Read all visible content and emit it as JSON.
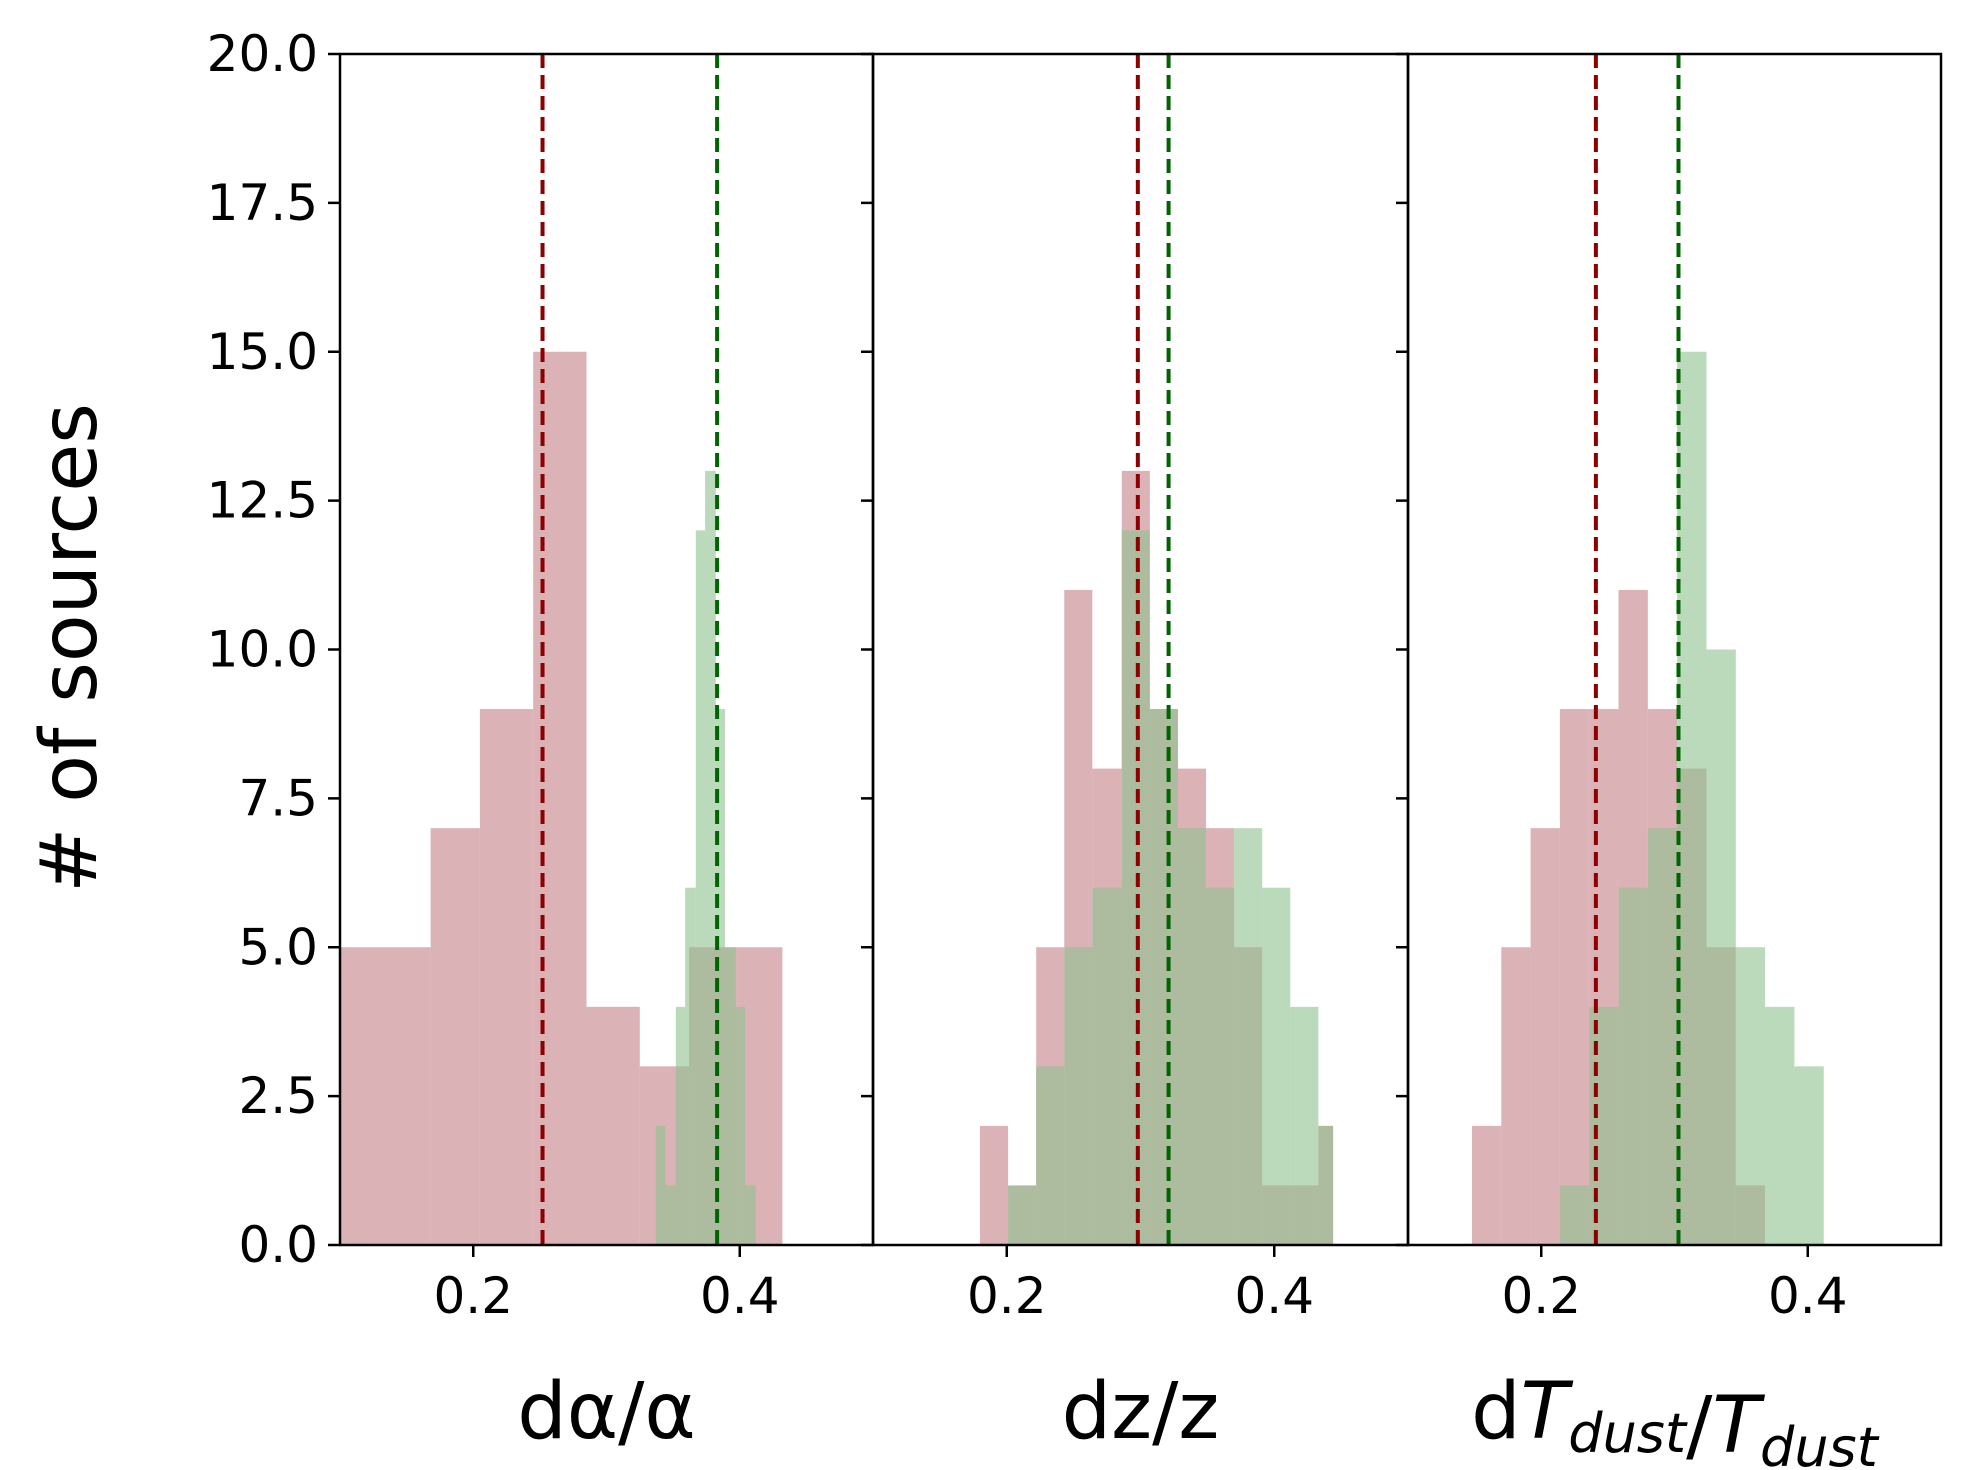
{
  "chart_data": {
    "type": "histogram",
    "ylabel": "# of sources",
    "ylim": [
      0,
      20
    ],
    "yticks": [
      "0.0",
      "2.5",
      "5.0",
      "7.5",
      "10.0",
      "12.5",
      "15.0",
      "17.5",
      "20.0"
    ],
    "xlim": [
      0.1,
      0.5
    ],
    "xticks": [
      "0.2",
      "0.4"
    ],
    "colors": {
      "red_fill": "#c88a8f",
      "green_fill": "#8dc08d",
      "red_line": "#8b0000",
      "green_line": "#006400"
    },
    "panels": [
      {
        "xlabel": "dα/α",
        "xlabel_parts": [
          {
            "text": "dα/α",
            "style": "normal"
          }
        ],
        "red_mean": 0.252,
        "green_mean": 0.383,
        "red_bins": [
          {
            "x0": 0.1,
            "x1": 0.168,
            "count": 5
          },
          {
            "x0": 0.168,
            "x1": 0.205,
            "count": 7
          },
          {
            "x0": 0.205,
            "x1": 0.245,
            "count": 9
          },
          {
            "x0": 0.245,
            "x1": 0.285,
            "count": 15
          },
          {
            "x0": 0.285,
            "x1": 0.325,
            "count": 4
          },
          {
            "x0": 0.325,
            "x1": 0.362,
            "count": 3
          },
          {
            "x0": 0.362,
            "x1": 0.398,
            "count": 5
          },
          {
            "x0": 0.398,
            "x1": 0.432,
            "count": 5
          }
        ],
        "green_bins": [
          {
            "x0": 0.337,
            "x1": 0.344,
            "count": 2
          },
          {
            "x0": 0.344,
            "x1": 0.352,
            "count": 1
          },
          {
            "x0": 0.352,
            "x1": 0.359,
            "count": 4
          },
          {
            "x0": 0.359,
            "x1": 0.367,
            "count": 6
          },
          {
            "x0": 0.367,
            "x1": 0.374,
            "count": 12
          },
          {
            "x0": 0.374,
            "x1": 0.382,
            "count": 13
          },
          {
            "x0": 0.382,
            "x1": 0.389,
            "count": 9
          },
          {
            "x0": 0.389,
            "x1": 0.397,
            "count": 5
          },
          {
            "x0": 0.397,
            "x1": 0.404,
            "count": 4
          },
          {
            "x0": 0.404,
            "x1": 0.412,
            "count": 1
          }
        ]
      },
      {
        "xlabel": "dz/z",
        "xlabel_parts": [
          {
            "text": "dz/z",
            "style": "normal"
          }
        ],
        "red_mean": 0.298,
        "green_mean": 0.321,
        "red_bins": [
          {
            "x0": 0.18,
            "x1": 0.201,
            "count": 2
          },
          {
            "x0": 0.201,
            "x1": 0.222,
            "count": 1
          },
          {
            "x0": 0.222,
            "x1": 0.243,
            "count": 5
          },
          {
            "x0": 0.243,
            "x1": 0.264,
            "count": 11
          },
          {
            "x0": 0.264,
            "x1": 0.286,
            "count": 8
          },
          {
            "x0": 0.286,
            "x1": 0.307,
            "count": 13
          },
          {
            "x0": 0.307,
            "x1": 0.328,
            "count": 9
          },
          {
            "x0": 0.328,
            "x1": 0.349,
            "count": 8
          },
          {
            "x0": 0.349,
            "x1": 0.37,
            "count": 7
          },
          {
            "x0": 0.37,
            "x1": 0.391,
            "count": 5
          },
          {
            "x0": 0.391,
            "x1": 0.412,
            "count": 1
          },
          {
            "x0": 0.412,
            "x1": 0.433,
            "count": 1
          },
          {
            "x0": 0.433,
            "x1": 0.444,
            "count": 2
          }
        ],
        "green_bins": [
          {
            "x0": 0.201,
            "x1": 0.222,
            "count": 1
          },
          {
            "x0": 0.222,
            "x1": 0.243,
            "count": 3
          },
          {
            "x0": 0.243,
            "x1": 0.264,
            "count": 5
          },
          {
            "x0": 0.264,
            "x1": 0.286,
            "count": 6
          },
          {
            "x0": 0.286,
            "x1": 0.307,
            "count": 12
          },
          {
            "x0": 0.307,
            "x1": 0.328,
            "count": 9
          },
          {
            "x0": 0.328,
            "x1": 0.349,
            "count": 7
          },
          {
            "x0": 0.349,
            "x1": 0.37,
            "count": 6
          },
          {
            "x0": 0.37,
            "x1": 0.391,
            "count": 7
          },
          {
            "x0": 0.391,
            "x1": 0.412,
            "count": 6
          },
          {
            "x0": 0.412,
            "x1": 0.433,
            "count": 4
          },
          {
            "x0": 0.433,
            "x1": 0.444,
            "count": 2
          }
        ]
      },
      {
        "xlabel": "dTdust/Tdust",
        "xlabel_parts": [
          {
            "text": "d",
            "style": "normal"
          },
          {
            "text": "T",
            "style": "italic"
          },
          {
            "text": "dust",
            "style": "italic-sub"
          },
          {
            "text": "/",
            "style": "normal"
          },
          {
            "text": "T",
            "style": "italic"
          },
          {
            "text": "dust",
            "style": "italic-sub"
          }
        ],
        "red_mean": 0.241,
        "green_mean": 0.303,
        "red_bins": [
          {
            "x0": 0.148,
            "x1": 0.17,
            "count": 2
          },
          {
            "x0": 0.17,
            "x1": 0.192,
            "count": 5
          },
          {
            "x0": 0.192,
            "x1": 0.214,
            "count": 7
          },
          {
            "x0": 0.214,
            "x1": 0.236,
            "count": 9
          },
          {
            "x0": 0.236,
            "x1": 0.258,
            "count": 9
          },
          {
            "x0": 0.258,
            "x1": 0.28,
            "count": 11
          },
          {
            "x0": 0.28,
            "x1": 0.302,
            "count": 9
          },
          {
            "x0": 0.302,
            "x1": 0.324,
            "count": 8
          },
          {
            "x0": 0.324,
            "x1": 0.346,
            "count": 5
          },
          {
            "x0": 0.346,
            "x1": 0.368,
            "count": 1
          }
        ],
        "green_bins": [
          {
            "x0": 0.214,
            "x1": 0.236,
            "count": 1
          },
          {
            "x0": 0.236,
            "x1": 0.258,
            "count": 4
          },
          {
            "x0": 0.258,
            "x1": 0.28,
            "count": 6
          },
          {
            "x0": 0.28,
            "x1": 0.302,
            "count": 7
          },
          {
            "x0": 0.302,
            "x1": 0.324,
            "count": 15
          },
          {
            "x0": 0.324,
            "x1": 0.346,
            "count": 10
          },
          {
            "x0": 0.346,
            "x1": 0.368,
            "count": 5
          },
          {
            "x0": 0.368,
            "x1": 0.39,
            "count": 4
          },
          {
            "x0": 0.39,
            "x1": 0.412,
            "count": 3
          }
        ]
      }
    ]
  }
}
